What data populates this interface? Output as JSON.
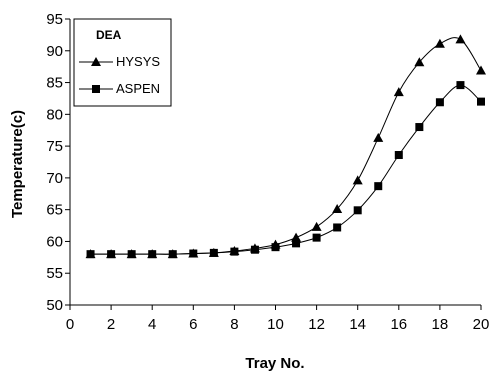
{
  "chart_data": {
    "type": "line",
    "title": "",
    "xlabel": "Tray No.",
    "ylabel": "Temperature(c)",
    "xlim": [
      0,
      20
    ],
    "ylim": [
      50,
      95
    ],
    "xticks": [
      0,
      2,
      4,
      6,
      8,
      10,
      12,
      14,
      16,
      18,
      20
    ],
    "yticks": [
      50,
      55,
      60,
      65,
      70,
      75,
      80,
      85,
      90,
      95
    ],
    "grid": false,
    "legend": {
      "title": "DEA",
      "position": "top-left"
    },
    "x": [
      1,
      2,
      3,
      4,
      5,
      6,
      7,
      8,
      9,
      10,
      11,
      12,
      13,
      14,
      15,
      16,
      17,
      18,
      19,
      20
    ],
    "series": [
      {
        "name": "HYSYS",
        "marker": "triangle",
        "color": "#000000",
        "values": [
          58,
          58,
          58,
          58,
          58,
          58.1,
          58.2,
          58.5,
          58.9,
          59.5,
          60.6,
          62.3,
          65.1,
          69.6,
          76.3,
          83.5,
          88.2,
          91.1,
          91.8,
          86.9
        ]
      },
      {
        "name": "ASPEN",
        "marker": "square",
        "color": "#000000",
        "values": [
          58,
          58,
          58,
          58,
          58,
          58.1,
          58.2,
          58.4,
          58.7,
          59.1,
          59.7,
          60.6,
          62.2,
          64.9,
          68.7,
          73.6,
          78.0,
          81.9,
          84.6,
          82.0
        ]
      }
    ]
  }
}
